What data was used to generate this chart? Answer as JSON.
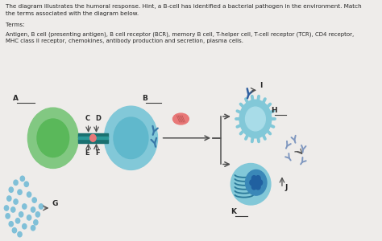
{
  "bg_color": "#eeecea",
  "title_line1": "The diagram illustrates the humoral response. Hint, a B-cell has identified a bacterial pathogen in the environment. Match",
  "title_line2": "the terms associated with the diagram below.",
  "terms_label": "Terms:",
  "terms_line1": "Antigen, B cell (presenting antigen), B cell receptor (BCR), memory B cell, T-helper cell, T-cell receptor (TCR), CD4 receptor,",
  "terms_line2": "MHC class II receptor, chemokines, antibody production and secretion, plasma cells.",
  "green_cell_outer": "#82c882",
  "green_cell_inner": "#5ab85a",
  "bcell_outer": "#82c8d8",
  "bcell_inner": "#60b8cc",
  "tcell_outer": "#82c8d8",
  "tcell_inner": "#a8dce8",
  "plasma_outer": "#82c8d8",
  "plasma_inner": "#3a88b8",
  "plasma_nuc": "#2060a0",
  "receptor_teal": "#2a9090",
  "receptor_mid": "#38a8a8",
  "antigen_color": "#e87878",
  "bcr_color": "#3878a8",
  "tcr_color": "#3060a0",
  "antibody_color": "#8098c0",
  "dot_color": "#80c0d8",
  "arrow_color": "#505050",
  "text_color": "#282828",
  "line_color": "#404040",
  "membrane_dark": "#1a7070",
  "membrane_mid": "#2a9898"
}
